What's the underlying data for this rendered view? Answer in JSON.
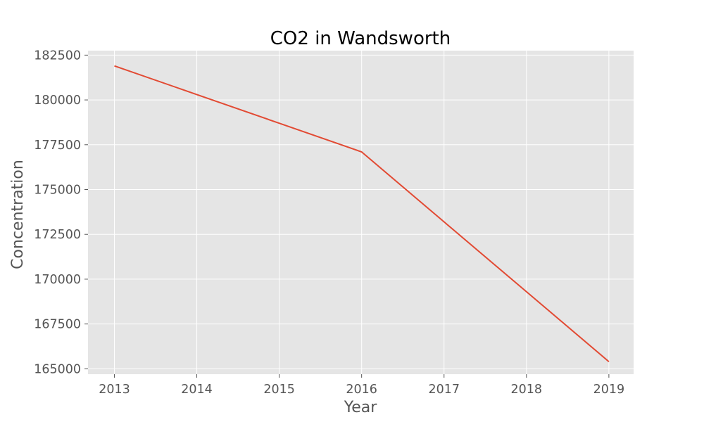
{
  "chart_data": {
    "type": "line",
    "title": "CO2 in Wandsworth",
    "xlabel": "Year",
    "ylabel": "Concentration",
    "x": [
      2013,
      2014,
      2015,
      2016,
      2017,
      2018,
      2019
    ],
    "series": [
      {
        "values": [
          181900,
          180300,
          178700,
          177100,
          173200,
          169300,
          165400
        ],
        "color": "#e24a33"
      }
    ],
    "xlim": [
      2012.68,
      2019.3
    ],
    "ylim": [
      164700,
      182750
    ],
    "xticks": [
      2013,
      2014,
      2015,
      2016,
      2017,
      2018,
      2019
    ],
    "yticks": [
      165000,
      167500,
      170000,
      172500,
      175000,
      177500,
      180000,
      182500
    ],
    "grid": true,
    "legend": "none"
  },
  "style": {
    "plot_background": "#e5e5e5",
    "grid_color": "#ffffff",
    "tick_color": "#555555",
    "title_color": "#000000"
  }
}
